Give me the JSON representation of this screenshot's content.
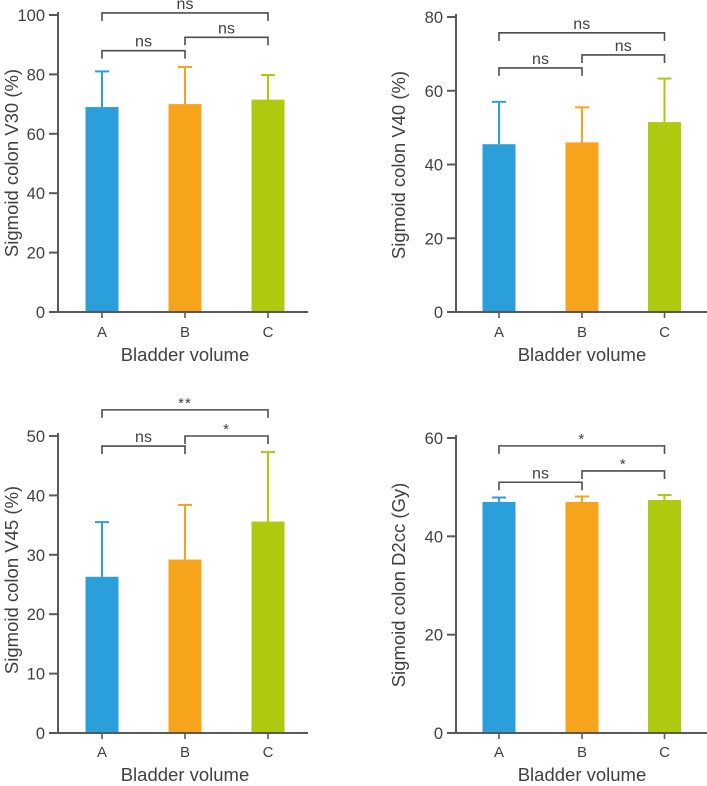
{
  "figure": {
    "background": "#ffffff",
    "description": "Four bar charts comparing sigmoid colon dose parameters across bladder volumes A, B and C"
  },
  "colors": {
    "bar_a": "#2B9FD9",
    "bar_b": "#F5A41B",
    "bar_c": "#AFC90F",
    "axis": "#58595b",
    "text": "#414042",
    "bracket": "#4d4d4f"
  },
  "chart_data": [
    {
      "type": "bar",
      "title": "",
      "ylabel": "Sigmoid colon V30 (%)",
      "xlabel": "Bladder volume",
      "categories": [
        "A",
        "B",
        "C"
      ],
      "values": [
        69,
        70,
        71.5
      ],
      "error_upper": [
        81,
        82.5,
        79.8
      ],
      "yticks": [
        0,
        20,
        40,
        60,
        80,
        100
      ],
      "ylim": [
        0,
        100
      ],
      "grid": false,
      "legend": "none",
      "bar_colors": [
        "#2B9FD9",
        "#F5A41B",
        "#AFC90F"
      ],
      "significance": [
        {
          "pair": [
            0,
            1
          ],
          "label": "ns",
          "y": 88.0
        },
        {
          "pair": [
            1,
            2
          ],
          "label": "ns",
          "y": 92.5
        },
        {
          "pair": [
            0,
            2
          ],
          "label": "ns",
          "y": 100.7
        }
      ]
    },
    {
      "type": "bar",
      "title": "",
      "ylabel": "Sigmoid colon V40 (%)",
      "xlabel": "Bladder volume",
      "categories": [
        "A",
        "B",
        "C"
      ],
      "values": [
        45.5,
        46,
        51.5
      ],
      "error_upper": [
        57,
        55.5,
        63.3
      ],
      "yticks": [
        0,
        20,
        40,
        60,
        80
      ],
      "ylim": [
        0,
        80
      ],
      "grid": false,
      "legend": "none",
      "bar_colors": [
        "#2B9FD9",
        "#F5A41B",
        "#AFC90F"
      ],
      "significance": [
        {
          "pair": [
            0,
            1
          ],
          "label": "ns",
          "y": 66.2
        },
        {
          "pair": [
            1,
            2
          ],
          "label": "ns",
          "y": 69.7
        },
        {
          "pair": [
            0,
            2
          ],
          "label": "ns",
          "y": 75.7
        }
      ]
    },
    {
      "type": "bar",
      "title": "",
      "ylabel": "Sigmoid colon V45 (%)",
      "xlabel": "Bladder volume",
      "categories": [
        "A",
        "B",
        "C"
      ],
      "values": [
        26.3,
        29.2,
        35.6
      ],
      "error_upper": [
        35.5,
        38.4,
        47.3
      ],
      "yticks": [
        0,
        10,
        20,
        30,
        40,
        50
      ],
      "ylim": [
        0,
        50
      ],
      "grid": false,
      "legend": "none",
      "bar_colors": [
        "#2B9FD9",
        "#F5A41B",
        "#AFC90F"
      ],
      "significance": [
        {
          "pair": [
            0,
            1
          ],
          "label": "ns",
          "y": 48.3
        },
        {
          "pair": [
            1,
            2
          ],
          "label": "*",
          "y": 50.0
        },
        {
          "pair": [
            0,
            2
          ],
          "label": "**",
          "y": 54.4
        }
      ]
    },
    {
      "type": "bar",
      "title": "",
      "ylabel": "Sigmoid colon D2cc (Gy)",
      "xlabel": "Bladder volume",
      "categories": [
        "A",
        "B",
        "C"
      ],
      "values": [
        47,
        47,
        47.4
      ],
      "error_upper": [
        47.9,
        48.1,
        48.4
      ],
      "yticks": [
        0,
        20,
        40,
        60
      ],
      "ylim": [
        0,
        60
      ],
      "grid": false,
      "legend": "none",
      "bar_colors": [
        "#2B9FD9",
        "#F5A41B",
        "#AFC90F"
      ],
      "significance": [
        {
          "pair": [
            0,
            1
          ],
          "label": "ns",
          "y": 51.0
        },
        {
          "pair": [
            1,
            2
          ],
          "label": "*",
          "y": 53.3
        },
        {
          "pair": [
            0,
            2
          ],
          "label": "*",
          "y": 58.4
        }
      ]
    }
  ]
}
